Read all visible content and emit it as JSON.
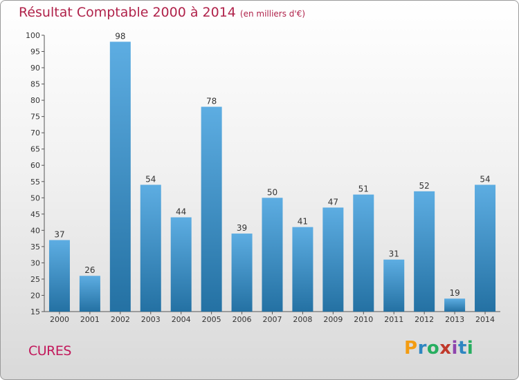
{
  "title": "Résultat Comptable 2000 à 2014",
  "subtitle": "(en milliers d'€)",
  "commune": "CURES",
  "logo": {
    "letters": [
      "P",
      "r",
      "o",
      "x",
      "i",
      "t",
      "i"
    ],
    "colors": [
      "#f39c12",
      "#2e86c1",
      "#27ae60",
      "#c0392b",
      "#8e44ad",
      "#2e86c1",
      "#27ae60"
    ]
  },
  "colors": {
    "bar_light": "#5dade2",
    "bar_dark": "#2471a3",
    "title": "#b0224a"
  },
  "chart_data": {
    "type": "bar",
    "title": "Résultat Comptable 2000 à 2014",
    "subtitle": "(en milliers d'€)",
    "xlabel": "",
    "ylabel": "",
    "categories": [
      "2000",
      "2001",
      "2002",
      "2003",
      "2004",
      "2005",
      "2006",
      "2007",
      "2008",
      "2009",
      "2010",
      "2011",
      "2012",
      "2013",
      "2014"
    ],
    "values": [
      37,
      26,
      98,
      54,
      44,
      78,
      39,
      50,
      41,
      47,
      51,
      31,
      52,
      19,
      54
    ],
    "ylim": [
      15,
      100
    ],
    "yticks": [
      15,
      20,
      25,
      30,
      35,
      40,
      45,
      50,
      55,
      60,
      65,
      70,
      75,
      80,
      85,
      90,
      95,
      100
    ],
    "grid": false,
    "legend": "none"
  }
}
